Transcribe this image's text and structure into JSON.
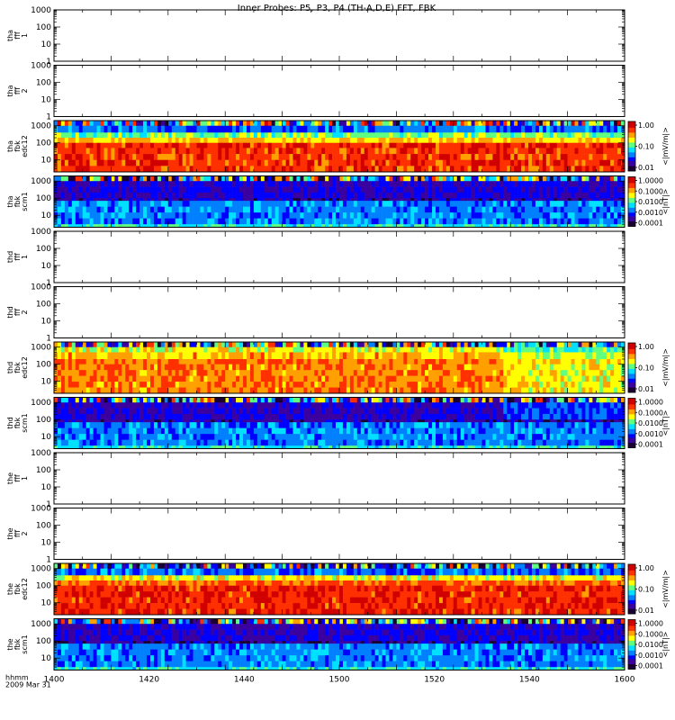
{
  "chart_data": {
    "type": "heatmap",
    "title": "Inner Probes: P5, P3, P4 (TH-A,D,E) FFT, FBK",
    "x_ticks": [
      "1400",
      "1420",
      "1440",
      "1500",
      "1520",
      "1540",
      "1600"
    ],
    "x_range": [
      "1400",
      "1600"
    ],
    "x_label_lines": [
      "hhmm",
      "2009 Mar 31"
    ],
    "y_ticks": [
      "1",
      "10",
      "100",
      "1000"
    ],
    "panels": [
      {
        "label": [
          "tha",
          "fff",
          "1"
        ],
        "kind": "empty",
        "y_range": [
          1,
          1000
        ]
      },
      {
        "label": [
          "tha",
          "fff",
          "2"
        ],
        "kind": "empty",
        "y_range": [
          1,
          1000
        ]
      },
      {
        "label": [
          "tha",
          "fbk",
          "edc12"
        ],
        "kind": "efield",
        "y_range": [
          2,
          2000
        ],
        "colorbar": {
          "ticks": [
            "1.00",
            "0.10",
            "0.01"
          ],
          "title": "<|mV/m|>"
        },
        "bands": [
          {
            "from": 1000,
            "to": 2000,
            "fill": 0.5
          },
          {
            "from": 400,
            "to": 1000,
            "fill": 0.33
          },
          {
            "from": 200,
            "to": 400,
            "fill": 0.55
          },
          {
            "from": 100,
            "to": 200,
            "fill": 0.7
          },
          {
            "from": 50,
            "to": 100,
            "fill": 0.88
          },
          {
            "from": 2,
            "to": 50,
            "fill": 0.86
          }
        ]
      },
      {
        "label": [
          "tha",
          "fbk",
          "scm1"
        ],
        "kind": "bfield",
        "y_range": [
          2,
          2000
        ],
        "colorbar": {
          "ticks": [
            "1.0000",
            "0.1000",
            "0.0100",
            "0.0010",
            "0.0001"
          ],
          "title": "<|nT|>"
        },
        "bands": [
          {
            "from": 1000,
            "to": 2000,
            "fill": 0.42
          },
          {
            "from": 100,
            "to": 1000,
            "fill": 0.2
          },
          {
            "from": 70,
            "to": 100,
            "fill": 0.15
          },
          {
            "from": 3,
            "to": 70,
            "fill": 0.35
          },
          {
            "from": 2,
            "to": 3,
            "fill": 0.48
          }
        ]
      },
      {
        "label": [
          "thd",
          "fff",
          "1"
        ],
        "kind": "empty",
        "y_range": [
          1,
          1000
        ]
      },
      {
        "label": [
          "thd",
          "fff",
          "2"
        ],
        "kind": "empty",
        "y_range": [
          1,
          1000
        ]
      },
      {
        "label": [
          "thd",
          "fbk",
          "edc12"
        ],
        "kind": "efield",
        "y_range": [
          2,
          2000
        ],
        "colorbar": {
          "ticks": [
            "1.00",
            "0.10",
            "0.01"
          ],
          "title": "<|mV/m|>"
        },
        "bands": [
          {
            "from": 1000,
            "to": 2000,
            "fill": 0.45
          },
          {
            "from": 500,
            "to": 1000,
            "fill": 0.65
          },
          {
            "from": 200,
            "to": 500,
            "fill": 0.72
          },
          {
            "from": 100,
            "to": 200,
            "fill": 0.8
          },
          {
            "from": 2,
            "to": 100,
            "fill": 0.78
          }
        ]
      },
      {
        "label": [
          "thd",
          "fbk",
          "scm1"
        ],
        "kind": "bfield",
        "y_range": [
          2,
          2000
        ],
        "colorbar": {
          "ticks": [
            "1.0000",
            "0.1000",
            "0.0100",
            "0.0010",
            "0.0001"
          ],
          "title": "<|nT|>"
        },
        "bands": [
          {
            "from": 1000,
            "to": 2000,
            "fill": 0.42
          },
          {
            "from": 100,
            "to": 1000,
            "fill": 0.2
          },
          {
            "from": 70,
            "to": 100,
            "fill": 0.15
          },
          {
            "from": 3,
            "to": 70,
            "fill": 0.35
          },
          {
            "from": 2,
            "to": 3,
            "fill": 0.48
          }
        ]
      },
      {
        "label": [
          "the",
          "fff",
          "1"
        ],
        "kind": "empty",
        "y_range": [
          1,
          1000
        ]
      },
      {
        "label": [
          "the",
          "fff",
          "2"
        ],
        "kind": "empty",
        "y_range": [
          1,
          1000
        ]
      },
      {
        "label": [
          "the",
          "fbk",
          "edc12"
        ],
        "kind": "efield",
        "y_range": [
          2,
          2000
        ],
        "colorbar": {
          "ticks": [
            "1.00",
            "0.10",
            "0.01"
          ],
          "title": "<|mV/m|>"
        },
        "bands": [
          {
            "from": 1000,
            "to": 2000,
            "fill": 0.4
          },
          {
            "from": 400,
            "to": 1000,
            "fill": 0.33
          },
          {
            "from": 200,
            "to": 400,
            "fill": 0.65
          },
          {
            "from": 100,
            "to": 200,
            "fill": 0.8
          },
          {
            "from": 2,
            "to": 100,
            "fill": 0.88
          }
        ]
      },
      {
        "label": [
          "the",
          "fbk",
          "scm1"
        ],
        "kind": "bfield",
        "y_range": [
          2,
          2000
        ],
        "colorbar": {
          "ticks": [
            "1.0000",
            "0.1000",
            "0.0100",
            "0.0010",
            "0.0001"
          ],
          "title": "<|nT|>"
        },
        "bands": [
          {
            "from": 1000,
            "to": 2000,
            "fill": 0.42
          },
          {
            "from": 100,
            "to": 1000,
            "fill": 0.2
          },
          {
            "from": 70,
            "to": 100,
            "fill": 0.15
          },
          {
            "from": 3,
            "to": 70,
            "fill": 0.35
          },
          {
            "from": 2,
            "to": 3,
            "fill": 0.48
          }
        ]
      }
    ],
    "colormap": [
      "#1a0033",
      "#3b00a0",
      "#0000ff",
      "#0080ff",
      "#00e0ff",
      "#60ff80",
      "#ffff00",
      "#ffa000",
      "#ff3000",
      "#d00000"
    ]
  }
}
